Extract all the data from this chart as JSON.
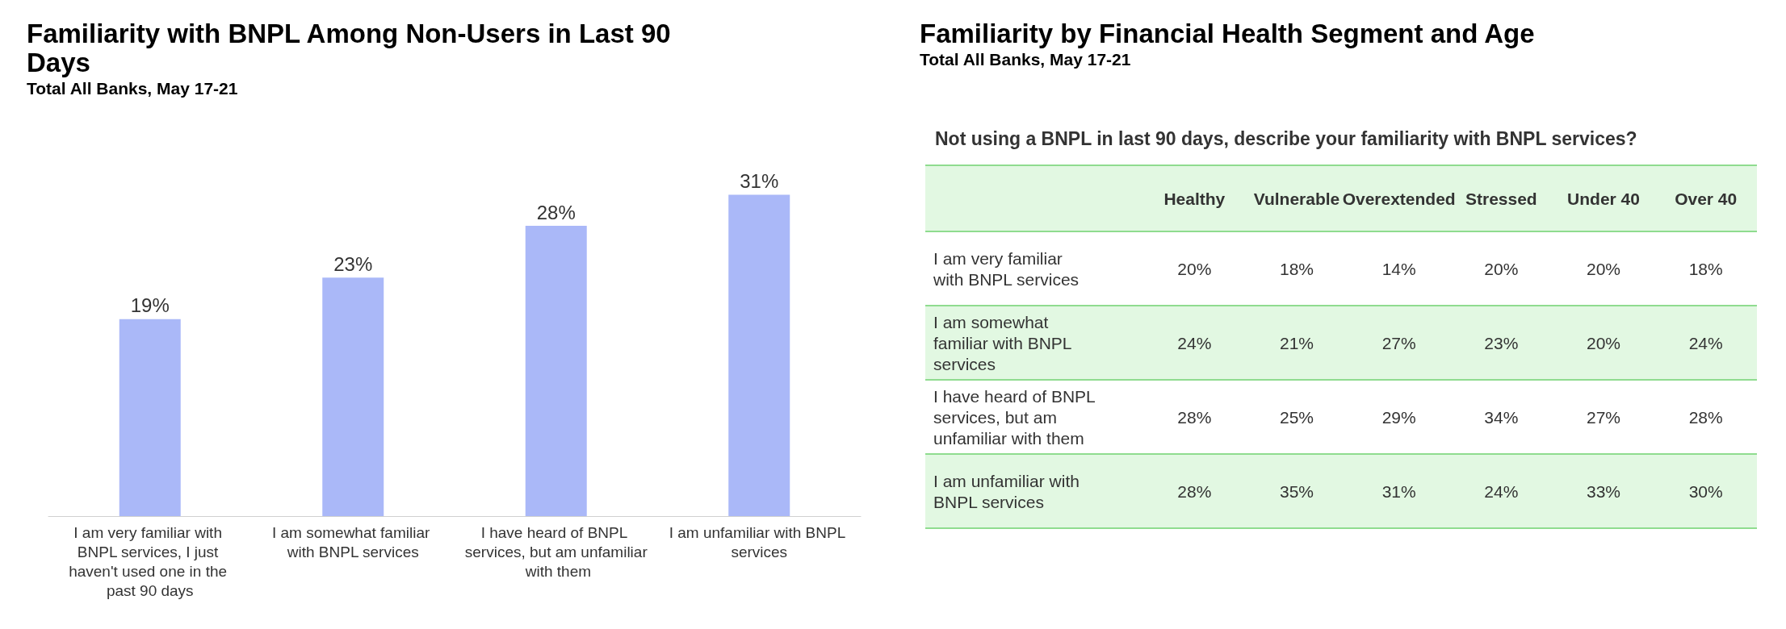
{
  "chart_data": [
    {
      "type": "bar",
      "title": "Familiarity with BNPL Among Non-Users in Last 90 Days",
      "subtitle": "Total All Banks, May 17-21",
      "categories": [
        "I am very familiar with BNPL services, I just haven't used one in the past 90 days",
        "I am somewhat familiar with BNPL services",
        "I have heard of BNPL services, but am unfamiliar with them",
        "I am unfamiliar with BNPL services"
      ],
      "values": [
        19,
        23,
        28,
        31
      ],
      "value_labels": [
        "19%",
        "23%",
        "28%",
        "31%"
      ],
      "color": "#aab8f8"
    },
    {
      "type": "other",
      "title": "Familiarity by Financial Health Segment and Age",
      "subtitle": "Total All Banks, May 17-21",
      "annotations": [
        "Not using a BNPL in last 90 days, describe your familiarity with BNPL services?"
      ],
      "categories": [
        "Healthy",
        "Vulnerable",
        "Overextended",
        "Stressed",
        "Under 40",
        "Over 40"
      ],
      "y_categories": [
        "I am very familiar with BNPL services",
        "I am somewhat familiar with BNPL services",
        "I have heard of BNPL services, but am unfamiliar with them",
        "I am unfamiliar with BNPL services"
      ],
      "cell_labels": [
        [
          "20%",
          "18%",
          "14%",
          "20%",
          "20%",
          "18%"
        ],
        [
          "24%",
          "21%",
          "27%",
          "23%",
          "20%",
          "24%"
        ],
        [
          "28%",
          "25%",
          "29%",
          "34%",
          "27%",
          "28%"
        ],
        [
          "28%",
          "35%",
          "31%",
          "24%",
          "33%",
          "30%"
        ]
      ],
      "colors": [
        "#e2f8e2",
        "#ffffff",
        "#e2f8e2",
        "#ffffff",
        "#e2f8e2"
      ]
    }
  ]
}
